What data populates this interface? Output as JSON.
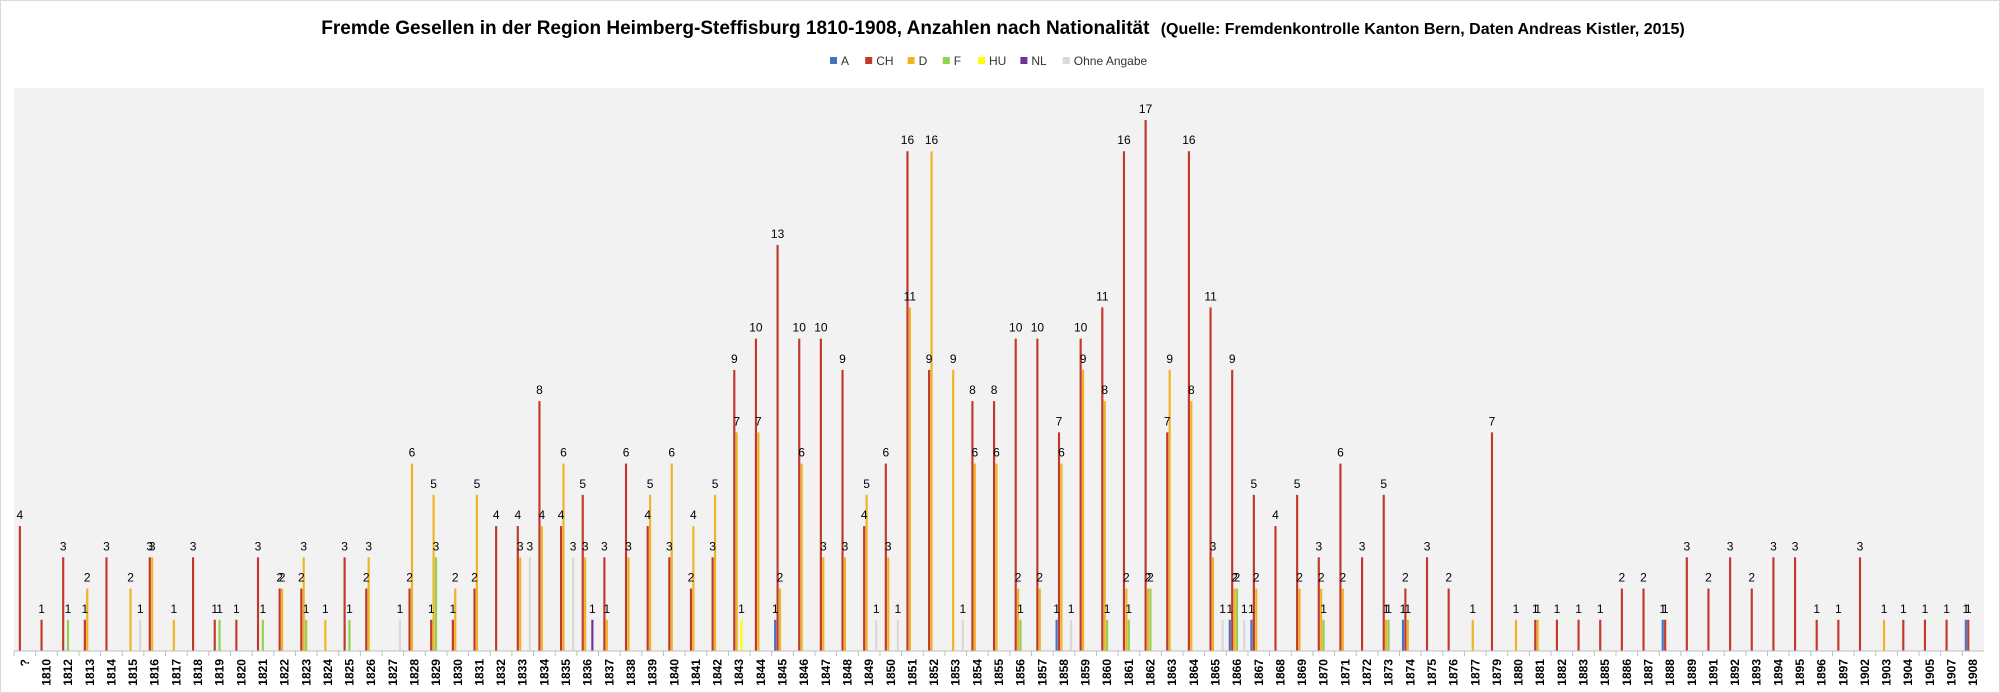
{
  "chart_data": {
    "type": "bar",
    "title": "Fremde Gesellen in der Region Heimberg-Steffisburg 1810-1908, Anzahlen nach Nationalität",
    "subtitle": "(Quelle: Fremdenkontrolle Kanton Bern, Daten Andreas Kistler, 2015)",
    "legend_position": "top",
    "grid": false,
    "ylim": [
      0,
      17
    ],
    "categories": [
      "?",
      "1810",
      "1812",
      "1813",
      "1814",
      "1815",
      "1816",
      "1817",
      "1818",
      "1819",
      "1820",
      "1821",
      "1822",
      "1823",
      "1824",
      "1825",
      "1826",
      "1827",
      "1828",
      "1829",
      "1830",
      "1831",
      "1832",
      "1833",
      "1834",
      "1835",
      "1836",
      "1837",
      "1838",
      "1839",
      "1840",
      "1841",
      "1842",
      "1843",
      "1844",
      "1845",
      "1846",
      "1847",
      "1848",
      "1849",
      "1850",
      "1851",
      "1852",
      "1853",
      "1854",
      "1855",
      "1856",
      "1857",
      "1858",
      "1859",
      "1860",
      "1861",
      "1862",
      "1863",
      "1864",
      "1865",
      "1866",
      "1867",
      "1868",
      "1869",
      "1870",
      "1871",
      "1872",
      "1873",
      "1874",
      "1875",
      "1876",
      "1877",
      "1879",
      "1880",
      "1881",
      "1882",
      "1883",
      "1885",
      "1886",
      "1887",
      "1888",
      "1889",
      "1891",
      "1892",
      "1893",
      "1894",
      "1895",
      "1896",
      "1897",
      "1902",
      "1903",
      "1904",
      "1905",
      "1907",
      "1908"
    ],
    "series": [
      {
        "name": "A",
        "color": "#4472c4",
        "values": [
          null,
          null,
          null,
          null,
          null,
          null,
          null,
          null,
          null,
          null,
          null,
          null,
          null,
          null,
          null,
          null,
          null,
          null,
          null,
          null,
          null,
          null,
          null,
          null,
          null,
          null,
          null,
          null,
          null,
          null,
          null,
          null,
          null,
          null,
          null,
          1,
          null,
          null,
          null,
          null,
          null,
          null,
          null,
          null,
          null,
          null,
          null,
          null,
          1,
          null,
          null,
          null,
          null,
          null,
          null,
          null,
          1,
          1,
          null,
          null,
          null,
          null,
          null,
          null,
          1,
          null,
          null,
          null,
          null,
          null,
          null,
          null,
          null,
          null,
          null,
          null,
          1,
          null,
          null,
          null,
          null,
          null,
          null,
          null,
          null,
          null,
          null,
          null,
          null,
          null,
          1
        ]
      },
      {
        "name": "CH",
        "color": "#c0392b",
        "values": [
          4,
          1,
          3,
          1,
          3,
          null,
          3,
          null,
          3,
          1,
          1,
          3,
          2,
          2,
          null,
          3,
          2,
          null,
          2,
          1,
          1,
          2,
          4,
          4,
          8,
          4,
          5,
          3,
          6,
          4,
          3,
          2,
          3,
          9,
          10,
          13,
          10,
          10,
          9,
          4,
          6,
          16,
          9,
          null,
          8,
          8,
          10,
          10,
          7,
          10,
          11,
          16,
          17,
          7,
          16,
          11,
          9,
          5,
          4,
          5,
          3,
          6,
          3,
          5,
          2,
          3,
          2,
          null,
          7,
          null,
          1,
          1,
          1,
          1,
          2,
          2,
          1,
          3,
          2,
          3,
          2,
          3,
          3,
          1,
          1,
          3,
          null,
          1,
          1,
          1,
          1
        ]
      },
      {
        "name": "D",
        "color": "#f0b323",
        "values": [
          null,
          null,
          null,
          2,
          null,
          2,
          3,
          1,
          null,
          null,
          null,
          null,
          2,
          3,
          1,
          null,
          3,
          null,
          6,
          5,
          2,
          5,
          null,
          3,
          4,
          6,
          3,
          1,
          3,
          5,
          6,
          4,
          5,
          7,
          7,
          2,
          6,
          3,
          3,
          5,
          3,
          11,
          16,
          9,
          6,
          6,
          2,
          2,
          6,
          9,
          8,
          2,
          2,
          9,
          8,
          3,
          2,
          2,
          null,
          2,
          2,
          2,
          null,
          1,
          1,
          null,
          null,
          1,
          null,
          1,
          1,
          null,
          null,
          null,
          null,
          null,
          null,
          null,
          null,
          null,
          null,
          null,
          null,
          null,
          null,
          null,
          1,
          null,
          null,
          null,
          null
        ]
      },
      {
        "name": "F",
        "color": "#92d050",
        "values": [
          null,
          null,
          1,
          null,
          null,
          null,
          null,
          null,
          null,
          1,
          null,
          1,
          null,
          1,
          null,
          1,
          null,
          null,
          null,
          3,
          null,
          null,
          null,
          null,
          null,
          null,
          null,
          null,
          null,
          null,
          null,
          null,
          null,
          null,
          null,
          null,
          null,
          null,
          null,
          null,
          null,
          null,
          null,
          null,
          null,
          null,
          1,
          null,
          null,
          null,
          1,
          1,
          2,
          null,
          null,
          null,
          2,
          null,
          null,
          null,
          1,
          null,
          null,
          1,
          null,
          null,
          null,
          null,
          null,
          null,
          null,
          null,
          null,
          null,
          null,
          null,
          null,
          null,
          null,
          null,
          null,
          null,
          null,
          null,
          null,
          null,
          null,
          null,
          null,
          null,
          null
        ]
      },
      {
        "name": "HU",
        "color": "#ffff00",
        "values": [
          null,
          null,
          null,
          null,
          null,
          null,
          null,
          null,
          null,
          null,
          null,
          null,
          null,
          null,
          null,
          null,
          null,
          null,
          null,
          null,
          null,
          null,
          null,
          null,
          null,
          null,
          null,
          null,
          null,
          null,
          null,
          null,
          null,
          1,
          null,
          null,
          null,
          null,
          null,
          null,
          null,
          null,
          null,
          null,
          null,
          null,
          null,
          null,
          null,
          null,
          null,
          null,
          null,
          null,
          null,
          null,
          null,
          null,
          null,
          null,
          null,
          null,
          null,
          null,
          null,
          null,
          null,
          null,
          null,
          null,
          null,
          null,
          null,
          null,
          null,
          null,
          null,
          null,
          null,
          null,
          null,
          null,
          null,
          null,
          null,
          null,
          null,
          null,
          null,
          null,
          null
        ]
      },
      {
        "name": "NL",
        "color": "#7030a0",
        "values": [
          null,
          null,
          null,
          null,
          null,
          null,
          null,
          null,
          null,
          null,
          null,
          null,
          null,
          null,
          null,
          null,
          null,
          null,
          null,
          null,
          null,
          null,
          null,
          null,
          null,
          null,
          1,
          null,
          null,
          null,
          null,
          null,
          null,
          null,
          null,
          null,
          null,
          null,
          null,
          null,
          null,
          null,
          null,
          null,
          null,
          null,
          null,
          null,
          null,
          null,
          null,
          null,
          null,
          null,
          null,
          null,
          null,
          null,
          null,
          null,
          null,
          null,
          null,
          null,
          null,
          null,
          null,
          null,
          null,
          null,
          null,
          null,
          null,
          null,
          null,
          null,
          null,
          null,
          null,
          null,
          null,
          null,
          null,
          null,
          null,
          null,
          null,
          null,
          null,
          null,
          null
        ]
      },
      {
        "name": "Ohne Angabe",
        "color": "#d9d9d9",
        "values": [
          null,
          null,
          null,
          null,
          null,
          1,
          null,
          null,
          null,
          null,
          null,
          null,
          null,
          null,
          null,
          null,
          null,
          1,
          null,
          null,
          null,
          null,
          null,
          3,
          null,
          3,
          null,
          null,
          null,
          null,
          null,
          null,
          null,
          null,
          null,
          null,
          null,
          null,
          null,
          1,
          1,
          null,
          null,
          1,
          null,
          null,
          null,
          null,
          1,
          null,
          null,
          null,
          null,
          null,
          null,
          1,
          1,
          null,
          null,
          null,
          null,
          null,
          null,
          null,
          null,
          null,
          null,
          null,
          null,
          null,
          null,
          null,
          null,
          null,
          null,
          null,
          null,
          null,
          null,
          null,
          null,
          null,
          null,
          null,
          null,
          null,
          null,
          null,
          null,
          null,
          null
        ]
      }
    ]
  }
}
